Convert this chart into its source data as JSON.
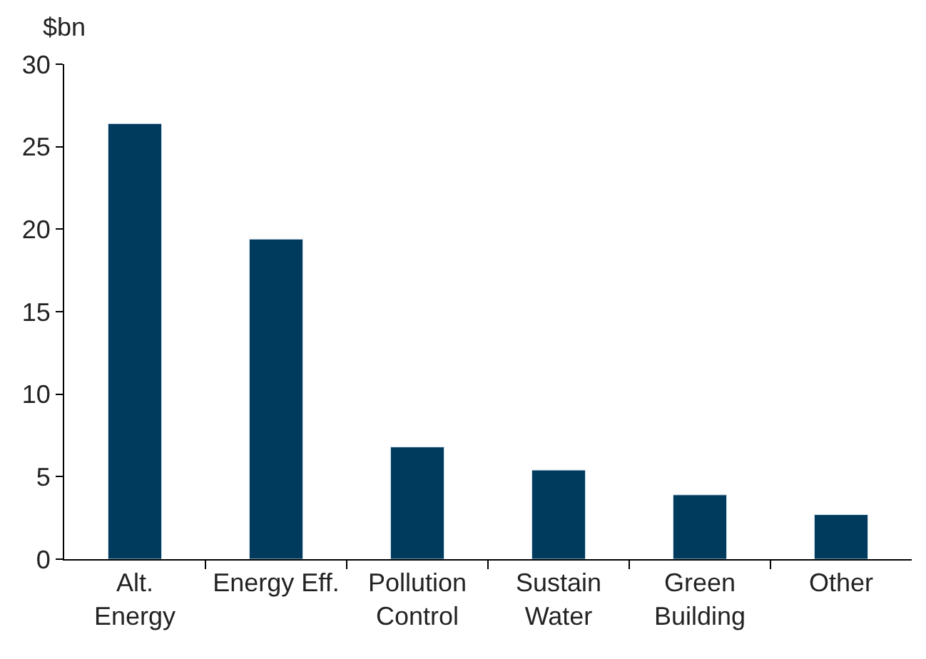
{
  "chart_data": {
    "type": "bar",
    "ylabel": "$bn",
    "categories": [
      "Alt.\nEnergy",
      "Energy Eff.",
      "Pollution\nControl",
      "Sustain\nWater",
      "Green\nBuilding",
      "Other"
    ],
    "values": [
      26.4,
      19.4,
      6.8,
      5.4,
      3.9,
      2.7
    ],
    "color": "#003a5d",
    "ylim": [
      0,
      30
    ],
    "yticks": [
      0,
      5,
      10,
      15,
      20,
      25,
      30
    ]
  }
}
